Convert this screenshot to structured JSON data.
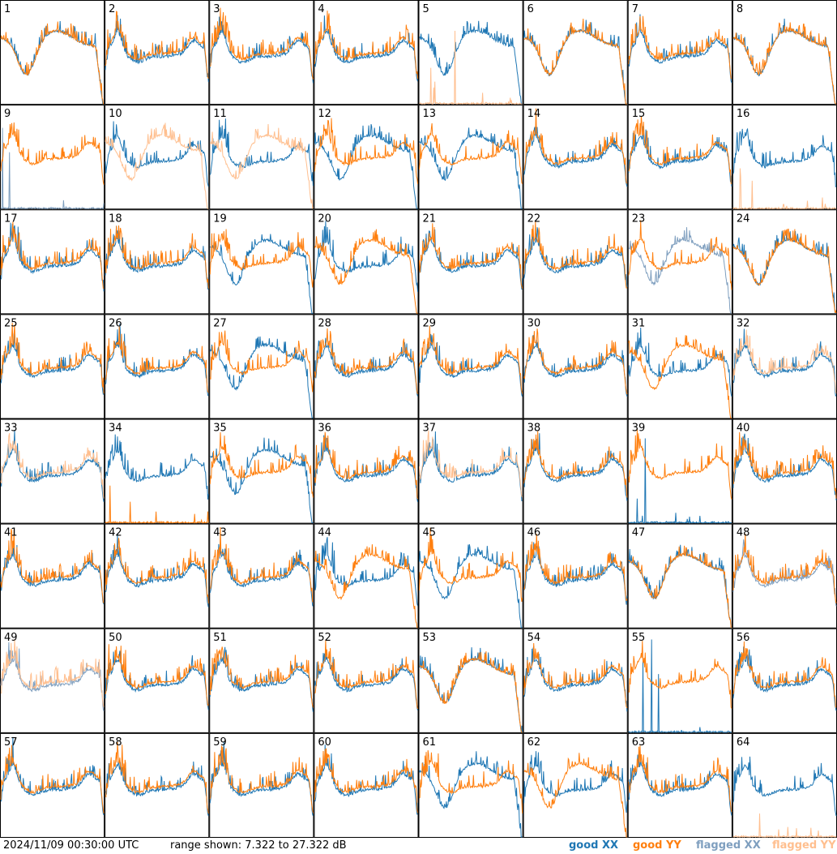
{
  "footer": {
    "timestamp": "2024/11/09 00:30:00 UTC",
    "range": "range shown: 7.322 to 27.322 dB"
  },
  "legend": [
    {
      "label": "good XX",
      "color": "#1f77b4"
    },
    {
      "label": "good YY",
      "color": "#ff7f0e"
    },
    {
      "label": "flagged XX",
      "color": "#7f9fbf"
    },
    {
      "label": "flagged YY",
      "color": "#ffbf8f"
    }
  ],
  "chart_data": {
    "type": "line",
    "grid_rows": 8,
    "grid_cols": 8,
    "ylim": [
      7.322,
      27.322
    ],
    "y_unit": "dB",
    "panel_labels": [
      "1",
      "2",
      "3",
      "4",
      "5",
      "6",
      "7",
      "8",
      "9",
      "10",
      "11",
      "12",
      "13",
      "14",
      "15",
      "16",
      "17",
      "18",
      "19",
      "20",
      "21",
      "22",
      "23",
      "24",
      "25",
      "26",
      "27",
      "28",
      "29",
      "30",
      "31",
      "32",
      "33",
      "34",
      "35",
      "36",
      "37",
      "38",
      "39",
      "40",
      "41",
      "42",
      "43",
      "44",
      "45",
      "46",
      "47",
      "48",
      "49",
      "50",
      "51",
      "52",
      "53",
      "54",
      "55",
      "56",
      "57",
      "58",
      "59",
      "60",
      "61",
      "62",
      "63",
      "64"
    ],
    "flags": {
      "flagged_xx": [
        "9",
        "23",
        "48",
        "49"
      ],
      "flagged_yy": [
        "5",
        "10",
        "11",
        "16",
        "32",
        "33",
        "37",
        "49",
        "64"
      ]
    },
    "anomalous_xx": [
      "1",
      "5",
      "6",
      "8",
      "12",
      "13",
      "19",
      "23",
      "24",
      "27",
      "35",
      "45",
      "47",
      "53",
      "61"
    ],
    "anomalous_yy": [
      "1",
      "6",
      "8",
      "10",
      "11",
      "20",
      "24",
      "31",
      "44",
      "47",
      "53",
      "62"
    ],
    "dead_xx": [
      "9",
      "39",
      "55"
    ],
    "dead_yy": [
      "5",
      "16",
      "34",
      "64"
    ]
  }
}
